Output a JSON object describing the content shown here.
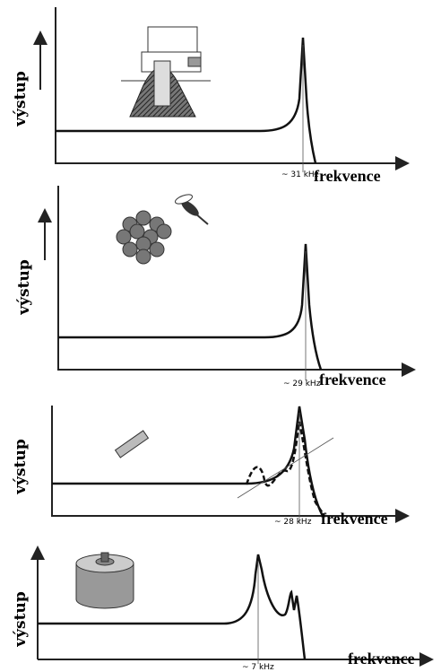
{
  "panels": [
    {
      "y_label": "výstup",
      "x_label": "frekvence",
      "peak_label": "~ 31 kHz"
    },
    {
      "y_label": "výstup",
      "x_label": "frekvence",
      "peak_label": "~ 29 kHz"
    },
    {
      "y_label": "výstup",
      "x_label": "frekvence",
      "peak_label": "~ 28 kHz"
    },
    {
      "y_label": "výstup",
      "x_label": "frekvence",
      "peak_label": "~ 7 kHz"
    }
  ]
}
